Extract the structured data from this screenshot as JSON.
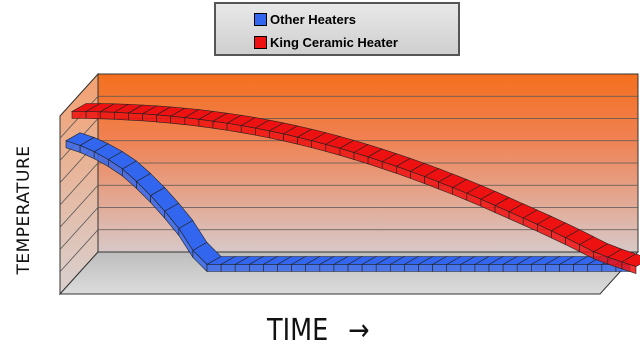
{
  "chart_data": {
    "type": "line",
    "style": "3d-ribbon",
    "xlabel": "TIME",
    "ylabel": "TEMPERATURE",
    "xlabel_arrow": "→",
    "legend": {
      "placement": "top-center",
      "border": true
    },
    "grid": true,
    "x": [
      0,
      0.5,
      1,
      1.5,
      2,
      2.5,
      3,
      3.5,
      4,
      4.5,
      5,
      5.5,
      6,
      6.5,
      7,
      7.5,
      8,
      8.5,
      9,
      9.5,
      10,
      10.5,
      11,
      11.5,
      12,
      12.5,
      13,
      13.5,
      14,
      14.5,
      15,
      15.5,
      16,
      16.5,
      17,
      17.5,
      18,
      18.5,
      19,
      19.5,
      20
    ],
    "series": [
      {
        "name": "Other Heaters",
        "color": "#3366ee",
        "values": [
          7.9,
          7.6,
          7.2,
          6.7,
          6.1,
          5.3,
          4.4,
          3.4,
          2.3,
          0.9,
          0.0,
          0,
          0,
          0,
          0,
          0,
          0,
          0,
          0,
          0,
          0,
          0,
          0,
          0,
          0,
          0,
          0,
          0,
          0,
          0,
          0,
          0,
          0,
          0,
          0,
          0,
          0,
          0,
          0,
          0,
          0
        ]
      },
      {
        "name": "King Ceramic Heater",
        "color": "#ee1111",
        "values": [
          9.0,
          9.0,
          8.98,
          8.95,
          8.9,
          8.85,
          8.78,
          8.7,
          8.61,
          8.5,
          8.38,
          8.25,
          8.1,
          7.94,
          7.76,
          7.57,
          7.36,
          7.14,
          6.9,
          6.65,
          6.38,
          6.1,
          5.8,
          5.5,
          5.18,
          4.85,
          4.5,
          4.15,
          3.78,
          3.4,
          3.0,
          2.6,
          2.2,
          1.8,
          1.38,
          0.95,
          0.5,
          0.05,
          -0.3,
          -0.6,
          -0.9
        ]
      }
    ],
    "ylim": [
      -1.5,
      10.5
    ],
    "xlim": [
      0,
      20
    ],
    "colors": {
      "back_wall_top": "#f4701e",
      "back_wall_bottom": "#d8c8c8",
      "floor": "#c8c8c8",
      "side_wall": "#e0b0a0"
    }
  }
}
